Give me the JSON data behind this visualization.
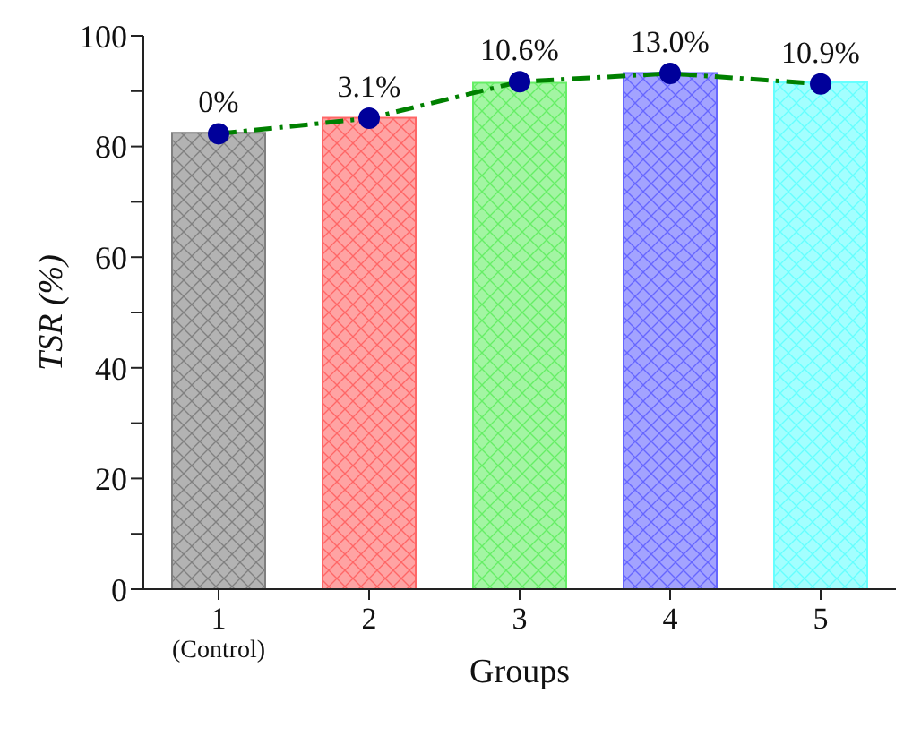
{
  "chart_data": {
    "type": "bar",
    "xlabel": "Groups",
    "ylabel": "TSR (%)",
    "categories": [
      "1\n(Control)",
      "2",
      "3",
      "4",
      "5"
    ],
    "series": [
      {
        "colors": [
          "#808080",
          "#ff6666",
          "#66ee66",
          "#6666ff",
          "#66ffff"
        ],
        "values": [
          82.5,
          85.2,
          91.5,
          93.3,
          91.6
        ]
      },
      {
        "type": "line",
        "color": "#008000",
        "colors": [
          "#00009a",
          "#00009a",
          "#00009a",
          "#00009a",
          "#00009a"
        ],
        "values": [
          82.3,
          85.1,
          91.7,
          93.2,
          91.3
        ],
        "line_style": "dashed",
        "marker": "circle"
      }
    ],
    "ylim": [
      0,
      100
    ],
    "yticks": [
      0,
      {
        "value": 10,
        "label": null
      },
      20,
      {
        "value": 30,
        "label": null
      },
      40,
      {
        "value": 50,
        "label": null
      },
      60,
      {
        "value": 70,
        "label": null
      },
      80,
      {
        "value": 90,
        "label": null
      },
      100
    ],
    "annotations": [
      {
        "text": "0%",
        "x": "1\n(Control)",
        "y": 82.3
      },
      {
        "text": "3.1%",
        "x": "2",
        "y": 85.1
      },
      {
        "text": "10.6%",
        "x": "3",
        "y": 91.7
      },
      {
        "text": "13.0%",
        "x": "4",
        "y": 93.2
      },
      {
        "text": "10.9%",
        "x": "5",
        "y": 91.3
      }
    ],
    "grid": false,
    "legend": false
  }
}
